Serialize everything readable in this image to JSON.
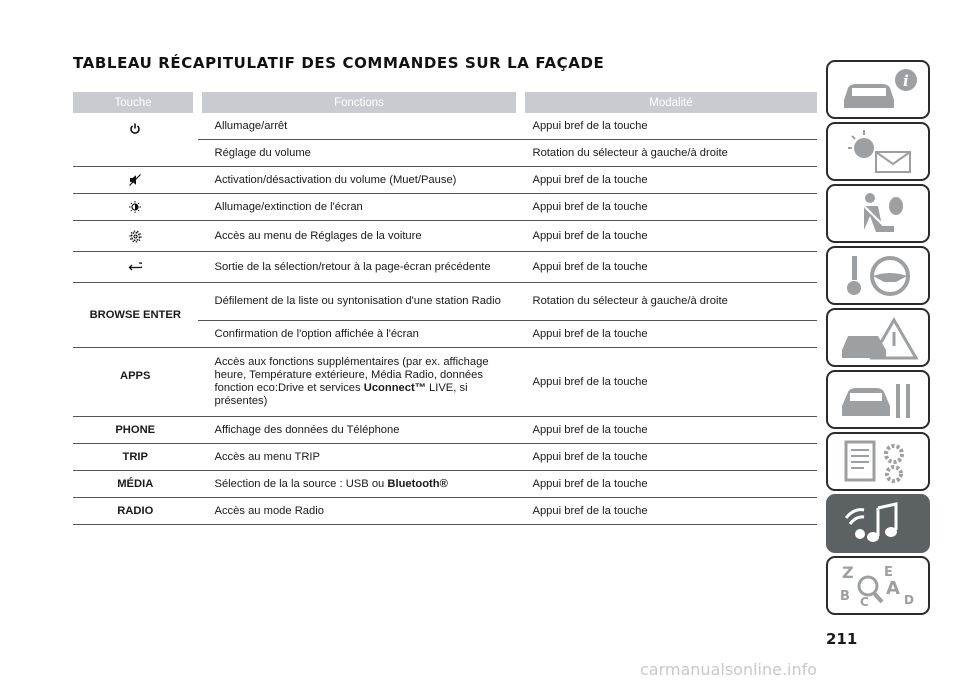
{
  "page": {
    "title": "TABLEAU RÉCAPITULATIF DES COMMANDES SUR LA FAÇADE",
    "page_number": "211",
    "watermark": "carmanualsonline.info"
  },
  "table": {
    "headers": {
      "key": "Touche",
      "function": "Fonctions",
      "mode": "Modalité"
    },
    "rows": [
      {
        "function": "Allumage/arrêt",
        "mode": "Appui bref de la touche"
      },
      {
        "function": "Réglage du volume",
        "mode": "Rotation du sélecteur à gauche/à droite"
      },
      {
        "function": "Activation/désactivation du volume (Muet/Pause)",
        "mode": "Appui bref de la touche"
      },
      {
        "function": "Allumage/extinction de l'écran",
        "mode": "Appui bref de la touche"
      },
      {
        "function": "Accès au menu de Réglages de la voiture",
        "mode": "Appui bref de la touche"
      },
      {
        "function": "Sortie de la sélection/retour à la page-écran précédente",
        "mode": "Appui bref de la touche"
      },
      {
        "key": "BROWSE ENTER",
        "function": "Défilement de la liste ou syntonisation d'une station Radio",
        "mode": "Rotation du sélecteur à gauche/à droite"
      },
      {
        "function": "Confirmation de l'option affichée à l'écran",
        "mode": "Appui bref de la touche"
      },
      {
        "key": "APPS",
        "function_pre": "Accès aux fonctions supplémentaires (par ex. affichage heure, Température extérieure, Média Radio, données fonction eco:Drive et services ",
        "function_bold": "Uconnect™",
        "function_post": " LIVE, si présentes)",
        "mode": "Appui bref de la touche"
      },
      {
        "key": "PHONE",
        "function": "Affichage des données du Téléphone",
        "mode": "Appui bref de la touche"
      },
      {
        "key": "TRIP",
        "function": "Accès au menu TRIP",
        "mode": "Appui bref de la touche"
      },
      {
        "key": "MÉDIA",
        "function_pre": "Sélection de la la source : USB ou ",
        "function_bold": "Bluetooth®",
        "mode": "Appui bref de la touche"
      },
      {
        "key": "RADIO",
        "function": "Accès au mode Radio",
        "mode": "Appui bref de la touche"
      }
    ]
  },
  "icons": {
    "power": "power-icon",
    "mute": "mute-icon",
    "screen": "screen-brightness-icon",
    "settings": "settings-gear-icon",
    "back": "back-arrow-icon"
  },
  "sidebar": {
    "tabs": [
      {
        "name": "car-info-tab",
        "icon": "car-info-icon"
      },
      {
        "name": "warning-lights-tab",
        "icon": "lights-message-icon"
      },
      {
        "name": "safety-tab",
        "icon": "seatbelt-airbag-icon"
      },
      {
        "name": "starting-driving-tab",
        "icon": "key-steering-icon"
      },
      {
        "name": "emergency-tab",
        "icon": "car-warning-icon"
      },
      {
        "name": "maintenance-tab",
        "icon": "car-tools-icon"
      },
      {
        "name": "technical-data-tab",
        "icon": "document-gears-icon"
      },
      {
        "name": "multimedia-tab",
        "icon": "multimedia-music-icon",
        "active": true
      },
      {
        "name": "index-tab",
        "icon": "alphabet-index-icon"
      }
    ]
  },
  "colors": {
    "header_bg": "#c8ccd0",
    "active_tab": "#5c6163",
    "border": "#2b2b2b"
  }
}
